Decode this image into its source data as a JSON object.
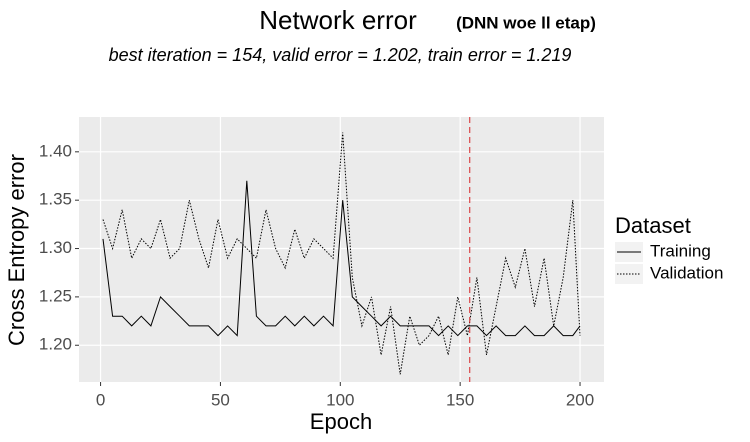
{
  "chart_data": {
    "type": "line",
    "title": "Network error",
    "title_note": "(DNN woe ll etap)",
    "subtitle": "best iteration = 154, valid error = 1.202, train error = 1.219",
    "x_label": "Epoch",
    "y_label": "Cross Entropy error",
    "legend_title": "Dataset",
    "legend_position": "right",
    "grid": true,
    "x": [
      1,
      5,
      9,
      13,
      17,
      21,
      25,
      29,
      33,
      37,
      41,
      45,
      49,
      53,
      57,
      61,
      65,
      69,
      73,
      77,
      81,
      85,
      89,
      93,
      97,
      101,
      105,
      109,
      113,
      117,
      121,
      125,
      129,
      133,
      137,
      141,
      145,
      149,
      153,
      157,
      161,
      165,
      169,
      173,
      177,
      181,
      185,
      189,
      193,
      197,
      200
    ],
    "series": [
      {
        "name": "Training",
        "color": "#000000",
        "linetype": "solid",
        "values": [
          1.31,
          1.23,
          1.23,
          1.22,
          1.23,
          1.22,
          1.25,
          1.24,
          1.23,
          1.22,
          1.22,
          1.22,
          1.21,
          1.22,
          1.21,
          1.37,
          1.23,
          1.22,
          1.22,
          1.23,
          1.22,
          1.23,
          1.22,
          1.23,
          1.22,
          1.35,
          1.25,
          1.24,
          1.23,
          1.22,
          1.23,
          1.22,
          1.22,
          1.22,
          1.22,
          1.21,
          1.22,
          1.21,
          1.22,
          1.22,
          1.21,
          1.22,
          1.21,
          1.21,
          1.22,
          1.21,
          1.21,
          1.22,
          1.21,
          1.21,
          1.22
        ]
      },
      {
        "name": "Validation",
        "color": "#000000",
        "linetype": "dotted",
        "values": [
          1.33,
          1.3,
          1.34,
          1.29,
          1.31,
          1.3,
          1.33,
          1.29,
          1.3,
          1.35,
          1.31,
          1.28,
          1.33,
          1.29,
          1.31,
          1.3,
          1.29,
          1.34,
          1.3,
          1.28,
          1.32,
          1.29,
          1.31,
          1.3,
          1.29,
          1.42,
          1.27,
          1.22,
          1.25,
          1.19,
          1.24,
          1.17,
          1.23,
          1.2,
          1.21,
          1.23,
          1.19,
          1.25,
          1.21,
          1.27,
          1.19,
          1.24,
          1.29,
          1.26,
          1.3,
          1.24,
          1.29,
          1.22,
          1.27,
          1.35,
          1.21
        ]
      }
    ],
    "vline": 154,
    "vline_color": "#d62728",
    "xlim": [
      -9,
      210
    ],
    "ylim": [
      1.162,
      1.436
    ],
    "xticks": [
      0,
      50,
      100,
      150,
      200
    ],
    "yticks": [
      {
        "value": 1.2,
        "label": "1.20"
      },
      {
        "value": 1.25,
        "label": "1.25"
      },
      {
        "value": 1.3,
        "label": "1.30"
      },
      {
        "value": 1.35,
        "label": "1.35"
      },
      {
        "value": 1.4,
        "label": "1.40"
      }
    ]
  }
}
